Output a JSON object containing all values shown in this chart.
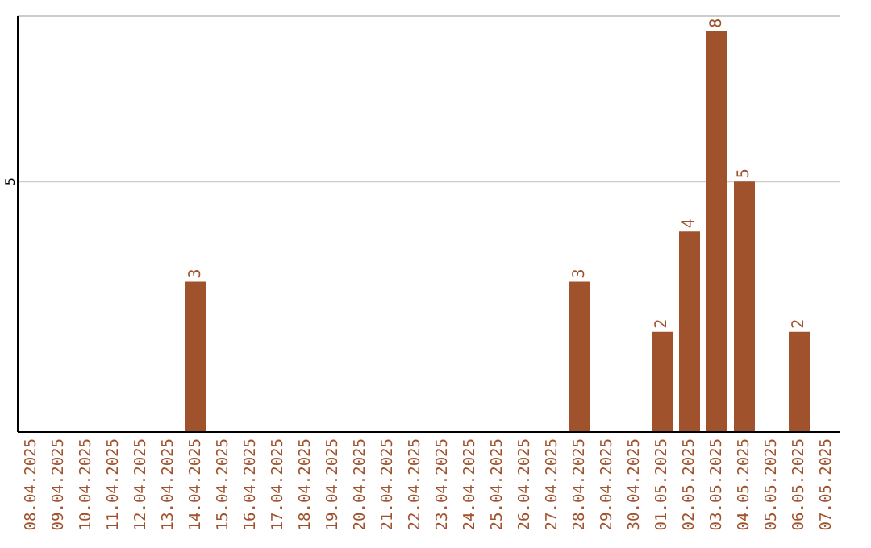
{
  "chart_data": {
    "type": "bar",
    "categories": [
      "08.04.2025",
      "09.04.2025",
      "10.04.2025",
      "11.04.2025",
      "12.04.2025",
      "13.04.2025",
      "14.04.2025",
      "15.04.2025",
      "16.04.2025",
      "17.04.2025",
      "18.04.2025",
      "19.04.2025",
      "20.04.2025",
      "21.04.2025",
      "22.04.2025",
      "23.04.2025",
      "24.04.2025",
      "25.04.2025",
      "26.04.2025",
      "27.04.2025",
      "28.04.2025",
      "29.04.2025",
      "30.04.2025",
      "01.05.2025",
      "02.05.2025",
      "03.05.2025",
      "04.05.2025",
      "05.05.2025",
      "06.05.2025",
      "07.05.2025"
    ],
    "values": [
      0,
      0,
      0,
      0,
      0,
      0,
      3,
      0,
      0,
      0,
      0,
      0,
      0,
      0,
      0,
      0,
      0,
      0,
      0,
      0,
      3,
      0,
      0,
      2,
      4,
      8,
      5,
      0,
      2,
      0
    ],
    "value_labels": [
      null,
      null,
      null,
      null,
      null,
      null,
      "3",
      null,
      null,
      null,
      null,
      null,
      null,
      null,
      null,
      null,
      null,
      null,
      null,
      null,
      "3",
      null,
      null,
      "2",
      "4",
      "8",
      "5",
      null,
      "2",
      null
    ],
    "color": "#a0522d",
    "ylim": [
      0,
      8.3
    ],
    "yticks": [
      5
    ],
    "grid": "y"
  }
}
